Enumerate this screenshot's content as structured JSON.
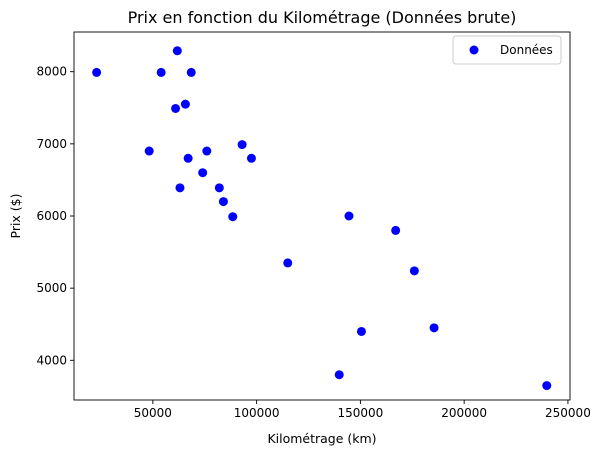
{
  "chart_data": {
    "type": "scatter",
    "title": "Prix en fonction du Kilométrage (Données brute)",
    "xlabel": "Kilométrage (km)",
    "ylabel": "Prix ($)",
    "xlim": [
      12000,
      251000
    ],
    "ylim": [
      3450,
      8550
    ],
    "xticks": [
      {
        "value": 50000,
        "label": "50000"
      },
      {
        "value": 100000,
        "label": "100000"
      },
      {
        "value": 150000,
        "label": "150000"
      },
      {
        "value": 200000,
        "label": "200000"
      },
      {
        "value": 250000,
        "label": "250000"
      }
    ],
    "yticks": [
      {
        "value": 4000,
        "label": "4000"
      },
      {
        "value": 5000,
        "label": "5000"
      },
      {
        "value": 6000,
        "label": "6000"
      },
      {
        "value": 7000,
        "label": "7000"
      },
      {
        "value": 8000,
        "label": "8000"
      }
    ],
    "grid": false,
    "legend_position": "top-right",
    "series": [
      {
        "name": "Données",
        "color": "#0000ff",
        "points": [
          {
            "x": 22899,
            "y": 7990
          },
          {
            "x": 48235,
            "y": 6900
          },
          {
            "x": 54000,
            "y": 7990
          },
          {
            "x": 60949,
            "y": 7490
          },
          {
            "x": 61789,
            "y": 8290
          },
          {
            "x": 63060,
            "y": 6390
          },
          {
            "x": 65674,
            "y": 7550
          },
          {
            "x": 67000,
            "y": 6800
          },
          {
            "x": 68500,
            "y": 7990
          },
          {
            "x": 74000,
            "y": 6600
          },
          {
            "x": 76000,
            "y": 6900
          },
          {
            "x": 82029,
            "y": 6390
          },
          {
            "x": 84000,
            "y": 6200
          },
          {
            "x": 88500,
            "y": 5990
          },
          {
            "x": 93000,
            "y": 6990
          },
          {
            "x": 97500,
            "y": 6800
          },
          {
            "x": 115000,
            "y": 5350
          },
          {
            "x": 139800,
            "y": 3800
          },
          {
            "x": 144500,
            "y": 6000
          },
          {
            "x": 150500,
            "y": 4400
          },
          {
            "x": 167000,
            "y": 5800
          },
          {
            "x": 176000,
            "y": 5240
          },
          {
            "x": 185500,
            "y": 4450
          },
          {
            "x": 239800,
            "y": 3650
          }
        ]
      }
    ]
  }
}
